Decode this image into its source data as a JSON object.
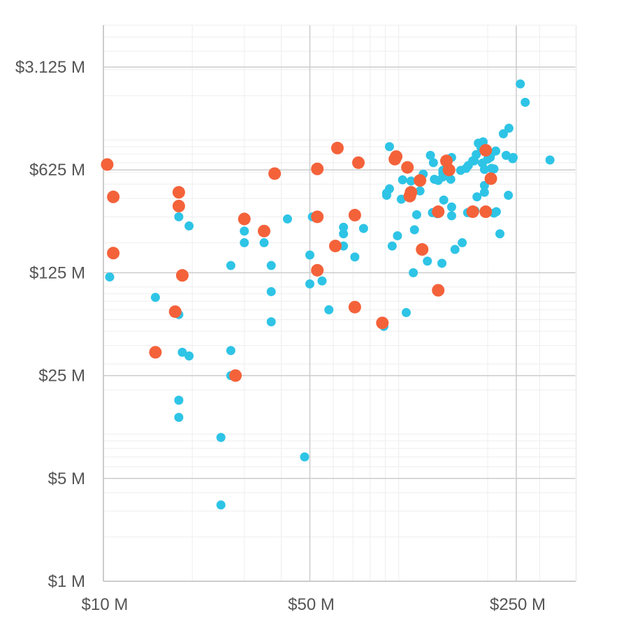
{
  "chart_data": {
    "type": "scatter",
    "title": "",
    "xlabel": "",
    "ylabel": "",
    "x_scale": "log",
    "y_scale": "log",
    "xlim": [
      10,
      400
    ],
    "ylim": [
      1,
      5000
    ],
    "grid": true,
    "x_ticks": [
      {
        "value": 10,
        "label": "$10  M"
      },
      {
        "value": 50,
        "label": "$50  M"
      },
      {
        "value": 250,
        "label": "$250  M"
      }
    ],
    "y_ticks": [
      {
        "value": 1,
        "label": "$1  M"
      },
      {
        "value": 5,
        "label": "$5  M"
      },
      {
        "value": 25,
        "label": "$25  M"
      },
      {
        "value": 125,
        "label": "$125  M"
      },
      {
        "value": 625,
        "label": "$625  M"
      },
      {
        "value": 3125,
        "label": "$3.125  M"
      }
    ],
    "series": [
      {
        "color": "#2ec4e6",
        "points": [
          [
            10.5,
            117
          ],
          [
            15,
            85
          ],
          [
            18,
            65
          ],
          [
            18,
            300
          ],
          [
            18,
            17
          ],
          [
            18,
            13
          ],
          [
            18.5,
            36
          ],
          [
            19.5,
            34
          ],
          [
            19.5,
            260
          ],
          [
            25,
            9.5
          ],
          [
            25,
            3.3
          ],
          [
            27,
            25
          ],
          [
            27,
            140
          ],
          [
            27,
            37
          ],
          [
            30,
            240
          ],
          [
            30,
            200
          ],
          [
            35,
            200
          ],
          [
            37,
            140
          ],
          [
            37,
            93
          ],
          [
            37,
            58
          ],
          [
            42,
            290
          ],
          [
            48,
            7
          ],
          [
            50,
            165
          ],
          [
            50,
            105
          ],
          [
            51,
            300
          ],
          [
            55,
            110
          ],
          [
            58,
            70
          ],
          [
            65,
            190
          ],
          [
            65,
            255
          ],
          [
            65,
            230
          ],
          [
            71,
            160
          ],
          [
            76,
            250
          ],
          [
            89,
            54
          ],
          [
            91,
            435
          ],
          [
            91,
            420
          ],
          [
            93,
            900
          ],
          [
            93,
            465
          ],
          [
            95,
            190
          ],
          [
            99,
            223
          ],
          [
            102,
            395
          ],
          [
            103,
            535
          ],
          [
            106,
            67
          ],
          [
            110,
            525
          ],
          [
            112,
            125
          ],
          [
            113,
            245
          ],
          [
            115,
            310
          ],
          [
            118,
            450
          ],
          [
            121,
            585
          ],
          [
            125,
            150
          ],
          [
            128,
            785
          ],
          [
            130,
            320
          ],
          [
            131,
            700
          ],
          [
            132,
            540
          ],
          [
            135,
            315
          ],
          [
            136,
            530
          ],
          [
            140,
            145
          ],
          [
            141,
            560
          ],
          [
            141,
            595
          ],
          [
            141,
            620
          ],
          [
            142,
            390
          ],
          [
            149,
            620
          ],
          [
            150,
            540
          ],
          [
            151,
            350
          ],
          [
            151,
            305
          ],
          [
            151,
            760
          ],
          [
            155,
            180
          ],
          [
            162,
            620
          ],
          [
            164,
            200
          ],
          [
            169,
            640
          ],
          [
            171,
            320
          ],
          [
            172,
            670
          ],
          [
            174,
            320
          ],
          [
            178,
            720
          ],
          [
            180,
            720
          ],
          [
            181,
            330
          ],
          [
            183,
            795
          ],
          [
            184,
            410
          ],
          [
            186,
            950
          ],
          [
            190,
            885
          ],
          [
            192,
            695
          ],
          [
            193,
            970
          ],
          [
            195,
            630
          ],
          [
            195,
            490
          ],
          [
            195,
            440
          ],
          [
            200,
            740
          ],
          [
            204,
            760
          ],
          [
            205,
            800
          ],
          [
            206,
            640
          ],
          [
            210,
            318
          ],
          [
            210,
            635
          ],
          [
            213,
            840
          ],
          [
            214,
            325
          ],
          [
            220,
            230
          ],
          [
            226,
            1100
          ],
          [
            231,
            785
          ],
          [
            235,
            420
          ],
          [
            236,
            1200
          ],
          [
            243,
            745
          ],
          [
            244,
            760
          ],
          [
            258,
            2400
          ],
          [
            268,
            1800
          ],
          [
            325,
            730
          ]
        ]
      },
      {
        "color": "#f4623a",
        "points": [
          [
            10.3,
            680
          ],
          [
            10.8,
            410
          ],
          [
            10.8,
            170
          ],
          [
            15,
            36
          ],
          [
            17.5,
            68
          ],
          [
            18,
            440
          ],
          [
            18,
            355
          ],
          [
            18.5,
            120
          ],
          [
            28,
            25
          ],
          [
            30,
            290
          ],
          [
            35,
            240
          ],
          [
            38,
            590
          ],
          [
            53,
            300
          ],
          [
            53,
            130
          ],
          [
            53,
            635
          ],
          [
            61,
            190
          ],
          [
            62,
            880
          ],
          [
            71,
            308
          ],
          [
            71,
            73
          ],
          [
            73,
            700
          ],
          [
            88,
            57
          ],
          [
            97,
            740
          ],
          [
            98,
            770
          ],
          [
            107,
            650
          ],
          [
            109,
            415
          ],
          [
            110,
            440
          ],
          [
            118,
            530
          ],
          [
            120,
            180
          ],
          [
            136,
            325
          ],
          [
            136,
            95
          ],
          [
            145,
            720
          ],
          [
            148,
            625
          ],
          [
            178,
            325
          ],
          [
            197,
            325
          ],
          [
            197,
            850
          ],
          [
            205,
            545
          ]
        ]
      }
    ]
  }
}
